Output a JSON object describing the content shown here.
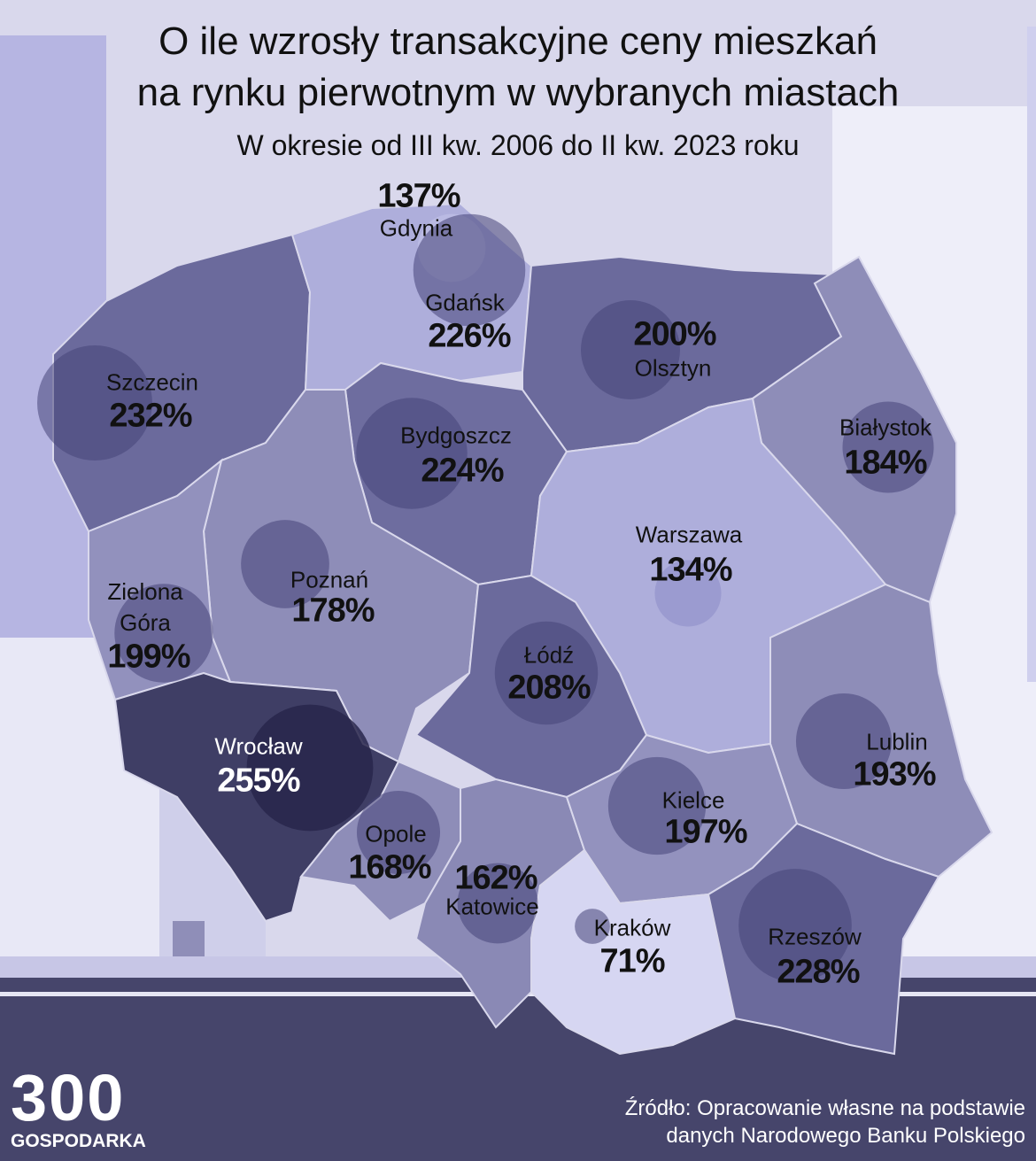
{
  "title_lines": [
    "O ile wzrosły transakcyjne ceny mieszkań",
    "na rynku pierwotnym w wybranych miastach"
  ],
  "subtitle": "W okresie od III kw. 2006 do II kw. 2023 roku",
  "cities": [
    {
      "name": "Gdynia",
      "value": 137,
      "label": "137%"
    },
    {
      "name": "Gdańsk",
      "value": 226,
      "label": "226%"
    },
    {
      "name": "Olsztyn",
      "value": 200,
      "label": "200%"
    },
    {
      "name": "Szczecin",
      "value": 232,
      "label": "232%"
    },
    {
      "name": "Bydgoszcz",
      "value": 224,
      "label": "224%"
    },
    {
      "name": "Białystok",
      "value": 184,
      "label": "184%"
    },
    {
      "name": "Warszawa",
      "value": 134,
      "label": "134%"
    },
    {
      "name": "Poznań",
      "value": 178,
      "label": "178%"
    },
    {
      "name": "Zielona Góra",
      "value": 199,
      "label": "199%"
    },
    {
      "name": "Łódź",
      "value": 208,
      "label": "208%"
    },
    {
      "name": "Wrocław",
      "value": 255,
      "label": "255%"
    },
    {
      "name": "Lublin",
      "value": 193,
      "label": "193%"
    },
    {
      "name": "Kielce",
      "value": 197,
      "label": "197%"
    },
    {
      "name": "Opole",
      "value": 168,
      "label": "168%"
    },
    {
      "name": "Katowice",
      "value": 162,
      "label": "162%"
    },
    {
      "name": "Kraków",
      "value": 71,
      "label": "71%"
    },
    {
      "name": "Rzeszów",
      "value": 228,
      "label": "228%"
    }
  ],
  "logo": {
    "number": "300",
    "word": "GOSPODARKA"
  },
  "source_lines": [
    "Źródło: Opracowanie własne na podstawie",
    "danych Narodowego Banku Polskiego"
  ]
}
